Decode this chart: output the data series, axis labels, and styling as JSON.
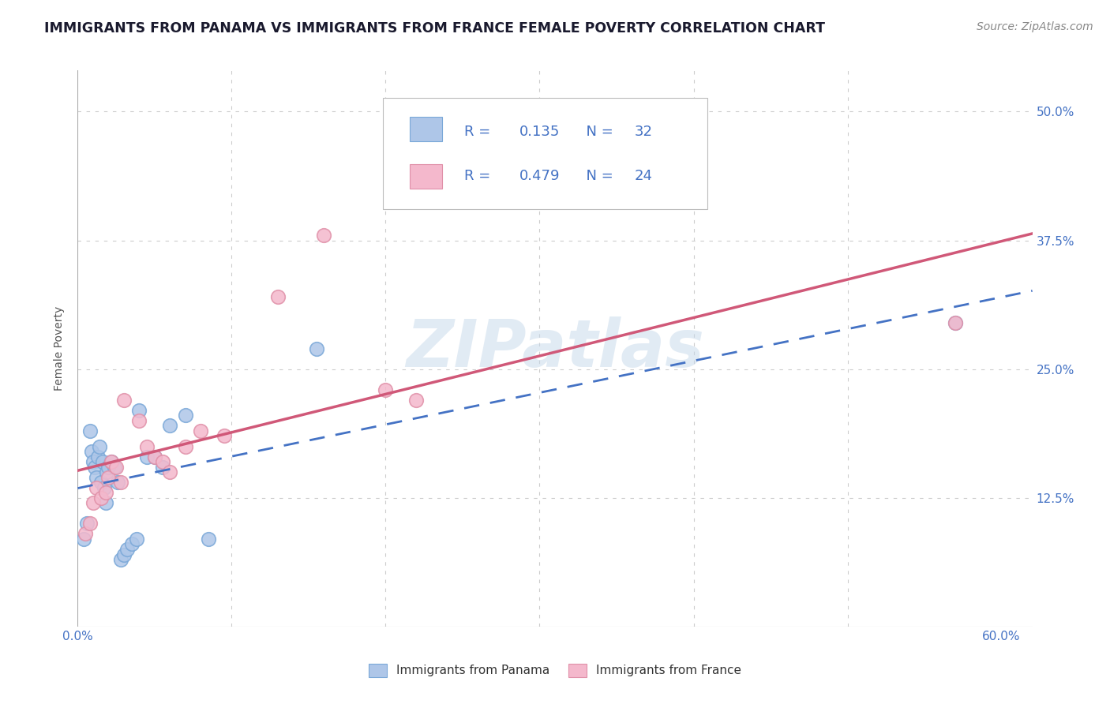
{
  "title": "IMMIGRANTS FROM PANAMA VS IMMIGRANTS FROM FRANCE FEMALE POVERTY CORRELATION CHART",
  "source": "Source: ZipAtlas.com",
  "ylabel": "Female Poverty",
  "xlim": [
    0.0,
    0.62
  ],
  "ylim": [
    0.0,
    0.54
  ],
  "ytick_positions": [
    0.0,
    0.125,
    0.25,
    0.375,
    0.5
  ],
  "ytick_labels_right": [
    "",
    "12.5%",
    "25.0%",
    "37.5%",
    "50.0%"
  ],
  "xtick_positions": [
    0.0,
    0.1,
    0.2,
    0.3,
    0.4,
    0.5,
    0.6
  ],
  "panama_R": "0.135",
  "panama_N": "32",
  "france_R": "0.479",
  "france_N": "24",
  "panama_scatter_color": "#aec6e8",
  "france_scatter_color": "#f4b8cc",
  "panama_edge_color": "#7aa8d8",
  "france_edge_color": "#e090a8",
  "panama_line_color": "#4472c4",
  "france_line_color": "#d05878",
  "legend_text_color": "#4472c4",
  "watermark": "ZIPatlas",
  "panama_x": [
    0.004,
    0.006,
    0.008,
    0.009,
    0.01,
    0.011,
    0.012,
    0.013,
    0.014,
    0.015,
    0.016,
    0.017,
    0.018,
    0.019,
    0.02,
    0.022,
    0.024,
    0.026,
    0.028,
    0.03,
    0.032,
    0.035,
    0.038,
    0.04,
    0.045,
    0.05,
    0.055,
    0.06,
    0.07,
    0.085,
    0.155,
    0.57
  ],
  "panama_y": [
    0.085,
    0.1,
    0.19,
    0.17,
    0.16,
    0.155,
    0.145,
    0.165,
    0.175,
    0.14,
    0.16,
    0.135,
    0.12,
    0.15,
    0.155,
    0.16,
    0.155,
    0.14,
    0.065,
    0.07,
    0.075,
    0.08,
    0.085,
    0.21,
    0.165,
    0.165,
    0.155,
    0.195,
    0.205,
    0.085,
    0.27,
    0.295
  ],
  "france_x": [
    0.005,
    0.008,
    0.01,
    0.012,
    0.015,
    0.018,
    0.02,
    0.022,
    0.025,
    0.028,
    0.03,
    0.04,
    0.045,
    0.05,
    0.055,
    0.06,
    0.07,
    0.08,
    0.095,
    0.13,
    0.16,
    0.2,
    0.22,
    0.57
  ],
  "france_y": [
    0.09,
    0.1,
    0.12,
    0.135,
    0.125,
    0.13,
    0.145,
    0.16,
    0.155,
    0.14,
    0.22,
    0.2,
    0.175,
    0.165,
    0.16,
    0.15,
    0.175,
    0.19,
    0.185,
    0.32,
    0.38,
    0.23,
    0.22,
    0.295
  ],
  "title_fontsize": 12.5,
  "axis_label_fontsize": 10,
  "tick_fontsize": 11,
  "legend_fontsize": 13,
  "source_fontsize": 10
}
